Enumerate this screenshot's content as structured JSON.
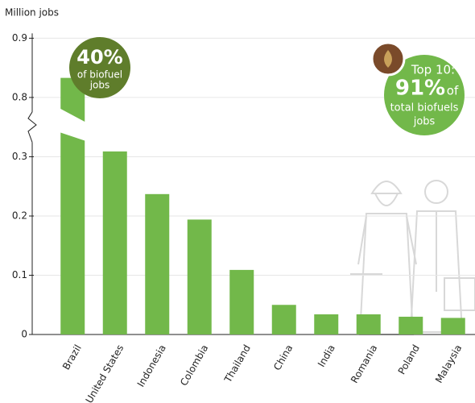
{
  "chart_data": {
    "type": "bar",
    "y_label": "Million jobs",
    "categories": [
      "Brazil",
      "United States",
      "Indonesia",
      "Colombia",
      "Thailand",
      "China",
      "India",
      "Romania",
      "Poland",
      "Malaysia"
    ],
    "values": [
      0.833,
      0.309,
      0.237,
      0.194,
      0.109,
      0.05,
      0.034,
      0.034,
      0.03,
      0.028
    ],
    "color": "#72b84a",
    "ylim": [
      0,
      0.9
    ],
    "yticks": [
      0,
      0.1,
      0.2,
      0.3,
      0.8,
      0.9
    ],
    "ybreak": [
      0.33,
      0.77
    ],
    "grid": true,
    "annotations": [
      {
        "color": "#5f7d2b",
        "lines": [
          "40%",
          "of biofuel",
          "jobs"
        ]
      },
      {
        "color": "#72b84a",
        "lines": [
          "Top 10:",
          "91%",
          "of",
          "total biofuels",
          "jobs"
        ]
      }
    ]
  }
}
